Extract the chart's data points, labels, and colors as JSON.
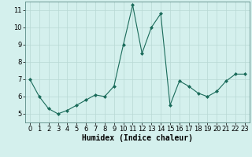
{
  "x": [
    0,
    1,
    2,
    3,
    4,
    5,
    6,
    7,
    8,
    9,
    10,
    11,
    12,
    13,
    14,
    15,
    16,
    17,
    18,
    19,
    20,
    21,
    22,
    23
  ],
  "y": [
    7.0,
    6.0,
    5.3,
    5.0,
    5.2,
    5.5,
    5.8,
    6.1,
    6.0,
    6.6,
    9.0,
    11.3,
    8.5,
    10.0,
    10.8,
    5.5,
    6.9,
    6.6,
    6.2,
    6.0,
    6.3,
    6.9,
    7.3,
    7.3
  ],
  "line_color": "#1a6b5a",
  "marker": "D",
  "marker_size": 2,
  "bg_color": "#d4f0ed",
  "grid_color": "#b8d8d4",
  "xlabel": "Humidex (Indice chaleur)",
  "ylim": [
    4.5,
    11.5
  ],
  "xlim": [
    -0.5,
    23.5
  ],
  "yticks": [
    5,
    6,
    7,
    8,
    9,
    10,
    11
  ],
  "xticks": [
    0,
    1,
    2,
    3,
    4,
    5,
    6,
    7,
    8,
    9,
    10,
    11,
    12,
    13,
    14,
    15,
    16,
    17,
    18,
    19,
    20,
    21,
    22,
    23
  ],
  "tick_label_fontsize": 6,
  "xlabel_fontsize": 7
}
